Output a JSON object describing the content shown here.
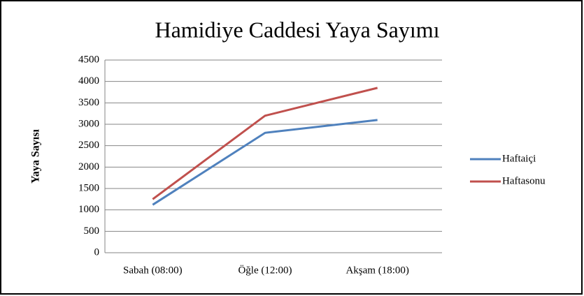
{
  "chart_data": {
    "type": "line",
    "title": "Hamidiye Caddesi Yaya Sayımı",
    "y_label": "Yaya Sayısı",
    "categories": [
      "Sabah (08:00)",
      "Öğle (12:00)",
      "Akşam (18:00)"
    ],
    "series": [
      {
        "name": "Haftaiçi",
        "color": "#4f81bd",
        "values": [
          1120,
          2800,
          3100
        ]
      },
      {
        "name": "Haftasonu",
        "color": "#c0504d",
        "values": [
          1250,
          3200,
          3850
        ]
      }
    ],
    "ylim": [
      0,
      4500
    ],
    "yticks": [
      0,
      500,
      1000,
      1500,
      2000,
      2500,
      3000,
      3500,
      4000,
      4500
    ],
    "grid": true,
    "legend": "right"
  }
}
